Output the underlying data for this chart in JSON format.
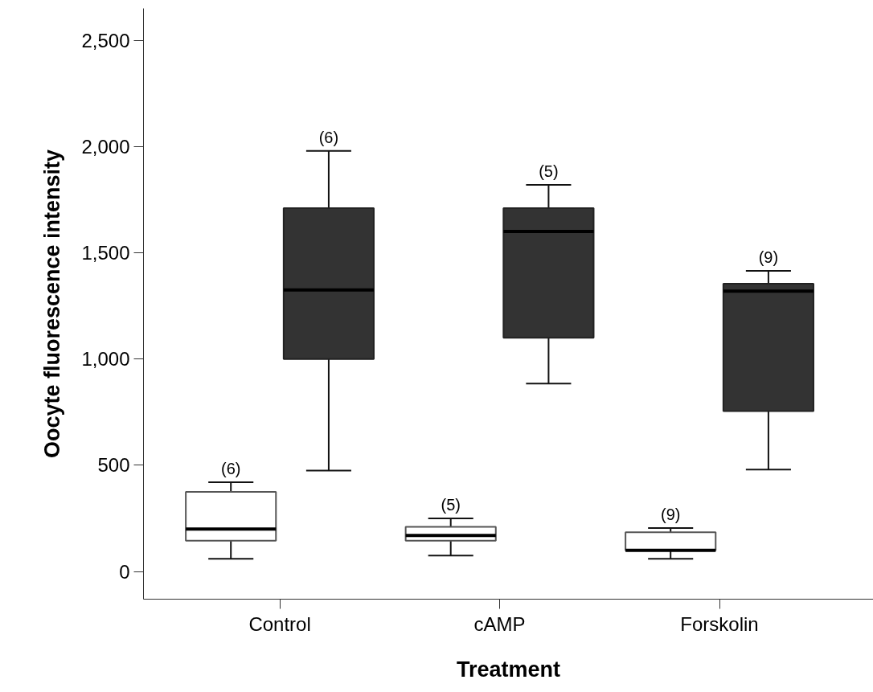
{
  "chart_data": {
    "type": "box",
    "xlabel": "Treatment",
    "ylabel": "Oocyte fluorescence intensity",
    "categories": [
      "Control",
      "cAMP",
      "Forskolin"
    ],
    "ylim": [
      -130,
      2650
    ],
    "yticks": [
      {
        "value": 0,
        "label": "0"
      },
      {
        "value": 500,
        "label": "500"
      },
      {
        "value": 1000,
        "label": "1,000"
      },
      {
        "value": 1500,
        "label": "1,500"
      },
      {
        "value": 2000,
        "label": "2,000"
      },
      {
        "value": 2500,
        "label": "2,500"
      }
    ],
    "grid": false,
    "series": [
      {
        "color": "#ffffff",
        "boxes": [
          {
            "low": 60,
            "q1": 145,
            "median": 200,
            "q3": 375,
            "high": 420
          },
          {
            "low": 75,
            "q1": 145,
            "median": 170,
            "q3": 210,
            "high": 250
          },
          {
            "low": 60,
            "q1": 100,
            "median": 100,
            "q3": 185,
            "high": 205
          }
        ]
      },
      {
        "color": "#333333",
        "boxes": [
          {
            "low": 475,
            "q1": 1000,
            "median": 1325,
            "q3": 1710,
            "high": 1980
          },
          {
            "low": 885,
            "q1": 1100,
            "median": 1600,
            "q3": 1710,
            "high": 1820
          },
          {
            "low": 480,
            "q1": 755,
            "median": 1320,
            "q3": 1355,
            "high": 1415
          }
        ]
      }
    ],
    "annotations": [
      "(6)",
      "(6)",
      "(5)",
      "(5)",
      "(9)",
      "(9)"
    ]
  }
}
